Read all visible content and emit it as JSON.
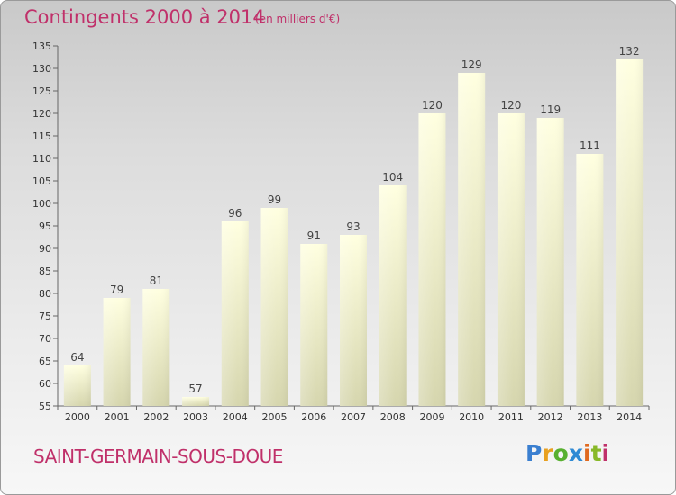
{
  "header": {
    "title": "Contingents 2000 à 2014",
    "unit": "(en milliers d'€)"
  },
  "footer": {
    "place": "SAINT-GERMAIN-SOUS-DOUE",
    "logo_letters": [
      "P",
      "r",
      "o",
      "x",
      "i",
      "t",
      "i"
    ],
    "logo_colors": [
      "#3a7fd0",
      "#e8a020",
      "#58b030",
      "#2f8ad4",
      "#e06a20",
      "#88b828",
      "#c0306a"
    ]
  },
  "colors": {
    "bar_top": "#ffffe0",
    "bar_bottom": "#d6d6ae",
    "title": "#c0306a"
  },
  "chart_data": {
    "type": "bar",
    "categories": [
      "2000",
      "2001",
      "2002",
      "2003",
      "2004",
      "2005",
      "2006",
      "2007",
      "2008",
      "2009",
      "2010",
      "2011",
      "2012",
      "2013",
      "2014"
    ],
    "values": [
      64,
      79,
      81,
      57,
      96,
      99,
      91,
      93,
      104,
      120,
      129,
      120,
      119,
      111,
      132
    ],
    "title": "Contingents 2000 à 2014",
    "ylim": [
      55,
      135
    ],
    "yticks": [
      55,
      60,
      65,
      70,
      75,
      80,
      85,
      90,
      95,
      100,
      105,
      110,
      115,
      120,
      125,
      130,
      135
    ],
    "grid": false,
    "data_labels": true
  }
}
